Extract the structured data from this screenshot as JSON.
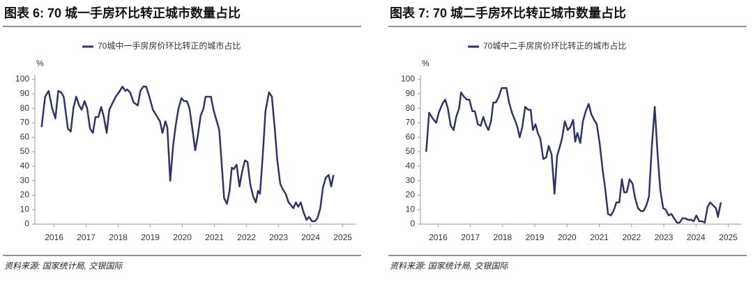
{
  "chart_data": [
    {
      "type": "line",
      "title": "图表 6: 70 城一手房环比转正城市数量占比",
      "y_label": "%",
      "source": "资料来源: 国家统计局, 交银国际",
      "x": [
        2015.61,
        2015.72,
        2015.83,
        2015.94,
        2016.04,
        2016.13,
        2016.22,
        2016.3,
        2016.43,
        2016.52,
        2016.6,
        2016.69,
        2016.78,
        2016.86,
        2016.95,
        2017.03,
        2017.12,
        2017.21,
        2017.29,
        2017.38,
        2017.47,
        2017.55,
        2017.64,
        2017.72,
        2017.83,
        2017.92,
        2018.05,
        2018.13,
        2018.22,
        2018.28,
        2018.37,
        2018.48,
        2018.61,
        2018.69,
        2018.78,
        2018.87,
        2018.97,
        2019.08,
        2019.19,
        2019.3,
        2019.38,
        2019.47,
        2019.53,
        2019.62,
        2019.71,
        2019.79,
        2019.88,
        2019.97,
        2020.05,
        2020.14,
        2020.22,
        2020.31,
        2020.4,
        2020.48,
        2020.57,
        2020.66,
        2020.72,
        2020.81,
        2020.89,
        2020.98,
        2021.06,
        2021.15,
        2021.24,
        2021.3,
        2021.39,
        2021.47,
        2021.54,
        2021.6,
        2021.69,
        2021.78,
        2021.86,
        2021.95,
        2022.03,
        2022.12,
        2022.21,
        2022.29,
        2022.36,
        2022.42,
        2022.51,
        2022.59,
        2022.7,
        2022.79,
        2022.88,
        2022.96,
        2023.05,
        2023.13,
        2023.22,
        2023.31,
        2023.39,
        2023.46,
        2023.54,
        2023.61,
        2023.69,
        2023.78,
        2023.87,
        2023.95,
        2024.04,
        2024.13,
        2024.21,
        2024.3,
        2024.38,
        2024.47,
        2024.56,
        2024.64,
        2024.71
      ],
      "series": [
        {
          "name": "70城中一手房房价环比转正的城市占比",
          "color": "#2e3466",
          "values": [
            67,
            88,
            92,
            80,
            73,
            92,
            91,
            88,
            66,
            64,
            80,
            88,
            82,
            79,
            85,
            80,
            66,
            63,
            74,
            74,
            81,
            74,
            63,
            79,
            84,
            88,
            92,
            95,
            92,
            93,
            91,
            84,
            82,
            92,
            95,
            95,
            88,
            79,
            75,
            71,
            63,
            71,
            67,
            30,
            54,
            68,
            80,
            87,
            85,
            85,
            80,
            66,
            51,
            61,
            75,
            80,
            88,
            88,
            88,
            78,
            72,
            65,
            37,
            18,
            14,
            23,
            39,
            38,
            41,
            26,
            36,
            44,
            43,
            27,
            19,
            15,
            23,
            21,
            49,
            78,
            91,
            88,
            66,
            44,
            28,
            24,
            21,
            15,
            13,
            11,
            15,
            12,
            15,
            8,
            3,
            5,
            2,
            2,
            4,
            11,
            25,
            32,
            34,
            26,
            34
          ]
        }
      ],
      "xlim": [
        2015.4,
        2025.4
      ],
      "xticks": [
        2016,
        2017,
        2018,
        2019,
        2020,
        2021,
        2022,
        2023,
        2024,
        2025
      ],
      "ylim": [
        0,
        100
      ],
      "yticks": [
        0,
        10,
        20,
        30,
        40,
        50,
        60,
        70,
        80,
        90,
        100
      ]
    },
    {
      "type": "line",
      "title": "图表 7: 70 城二手房环比转正城市数量占比",
      "y_label": "%",
      "source": "资料来源: 国家统计局, 交银国际",
      "x": [
        2015.63,
        2015.72,
        2015.83,
        2015.94,
        2016.02,
        2016.13,
        2016.22,
        2016.3,
        2016.39,
        2016.48,
        2016.56,
        2016.65,
        2016.71,
        2016.8,
        2016.89,
        2016.97,
        2017.06,
        2017.14,
        2017.23,
        2017.32,
        2017.4,
        2017.49,
        2017.56,
        2017.64,
        2017.71,
        2017.79,
        2017.88,
        2017.97,
        2018.05,
        2018.12,
        2018.2,
        2018.29,
        2018.38,
        2018.46,
        2018.53,
        2018.61,
        2018.7,
        2018.79,
        2018.87,
        2018.94,
        2019.02,
        2019.09,
        2019.17,
        2019.26,
        2019.35,
        2019.43,
        2019.52,
        2019.61,
        2019.69,
        2019.78,
        2019.84,
        2019.93,
        2020.02,
        2020.1,
        2020.19,
        2020.25,
        2020.32,
        2020.41,
        2020.49,
        2020.58,
        2020.67,
        2020.75,
        2020.84,
        2020.92,
        2021.01,
        2021.1,
        2021.18,
        2021.27,
        2021.36,
        2021.44,
        2021.53,
        2021.62,
        2021.7,
        2021.77,
        2021.85,
        2021.94,
        2022.03,
        2022.11,
        2022.2,
        2022.29,
        2022.37,
        2022.46,
        2022.54,
        2022.63,
        2022.72,
        2022.8,
        2022.89,
        2022.98,
        2023.06,
        2023.15,
        2023.24,
        2023.32,
        2023.41,
        2023.49,
        2023.58,
        2023.67,
        2023.75,
        2023.84,
        2023.93,
        2024.01,
        2024.1,
        2024.19,
        2024.27,
        2024.36,
        2024.44,
        2024.53,
        2024.62,
        2024.68,
        2024.77
      ],
      "series": [
        {
          "name": "70城中二手房房价环比转正的城市占比",
          "color": "#2e3466",
          "values": [
            50,
            77,
            73,
            70,
            77,
            83,
            86,
            80,
            68,
            65,
            74,
            80,
            91,
            88,
            86,
            86,
            78,
            78,
            69,
            68,
            74,
            68,
            65,
            71,
            84,
            84,
            88,
            94,
            94,
            94,
            84,
            77,
            72,
            67,
            60,
            67,
            81,
            79,
            79,
            65,
            69,
            63,
            59,
            45,
            46,
            54,
            48,
            21,
            47,
            54,
            59,
            71,
            65,
            67,
            72,
            57,
            63,
            56,
            71,
            78,
            83,
            76,
            72,
            69,
            56,
            38,
            25,
            7,
            6,
            9,
            15,
            15,
            31,
            22,
            22,
            31,
            28,
            18,
            11,
            9,
            9,
            13,
            19,
            54,
            81,
            51,
            24,
            11,
            10,
            6,
            7,
            4,
            1,
            1,
            4,
            4,
            3,
            3,
            2,
            6,
            2,
            2,
            1,
            12,
            15,
            13,
            11,
            5,
            15
          ]
        }
      ],
      "xlim": [
        2015.45,
        2025.4
      ],
      "xticks": [
        2016,
        2017,
        2018,
        2019,
        2020,
        2021,
        2022,
        2023,
        2024,
        2025
      ],
      "ylim": [
        0,
        100
      ],
      "yticks": [
        0,
        10,
        20,
        30,
        40,
        50,
        60,
        70,
        80,
        90,
        100
      ]
    }
  ]
}
